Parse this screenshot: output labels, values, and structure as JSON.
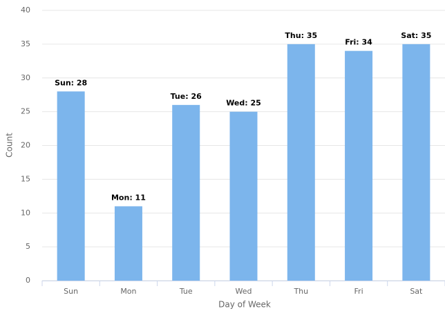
{
  "chart_data": {
    "type": "bar",
    "x_label": "Day of Week",
    "y_label": "Count",
    "categories": [
      "Sun",
      "Mon",
      "Tue",
      "Wed",
      "Thu",
      "Fri",
      "Sat"
    ],
    "values": [
      28,
      11,
      26,
      25,
      35,
      34,
      35
    ],
    "value_labels": [
      "Sun: 28",
      "Mon: 11",
      "Tue: 26",
      "Wed: 25",
      "Thu: 35",
      "Fri: 34",
      "Sat: 35"
    ],
    "color": "#7cb5ec",
    "ylim": [
      0,
      40
    ],
    "yticks": [
      0,
      5,
      10,
      15,
      20,
      25,
      30,
      35,
      40
    ],
    "grid": true
  }
}
